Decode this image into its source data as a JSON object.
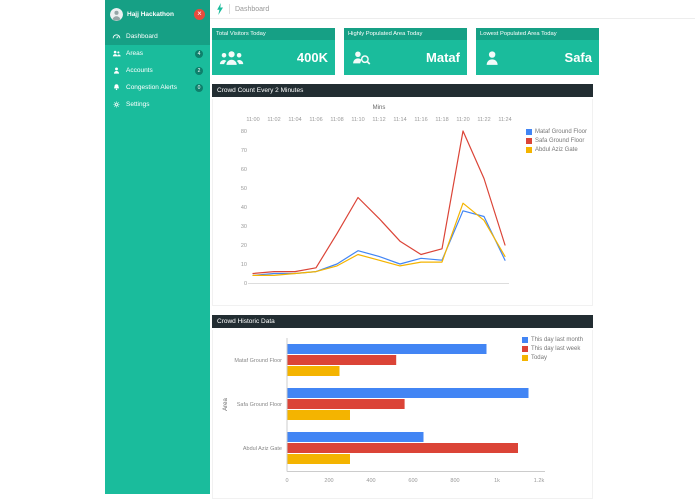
{
  "app": {
    "brand": "Hajj Hackathon",
    "breadcrumb": "Dashboard",
    "theme": {
      "teal": "#1abc9c",
      "teal_dark": "#16a085",
      "panel_header": "#222d32",
      "close_red": "#e74c3c"
    }
  },
  "sidebar": {
    "items": [
      {
        "label": "Dashboard",
        "icon": "gauge-icon",
        "active": true
      },
      {
        "label": "Areas",
        "icon": "people-icon",
        "badge": "4"
      },
      {
        "label": "Accounts",
        "icon": "person-icon",
        "badge": "2"
      },
      {
        "label": "Congestion Alerts",
        "icon": "bell-icon",
        "badge": "0"
      },
      {
        "label": "Settings",
        "icon": "gear-icon"
      }
    ]
  },
  "stat_boxes": [
    {
      "title": "Total Visitors Today",
      "value": "400K",
      "icon": "people-group-icon"
    },
    {
      "title": "Highly Populated Area Today",
      "value": "Mataf",
      "icon": "person-search-icon"
    },
    {
      "title": "Lowest Populated Area Today",
      "value": "Safa",
      "icon": "person-icon"
    }
  ],
  "chart_data": [
    {
      "type": "line",
      "title": "Crowd Count Every 2 Minutes",
      "xlabel": "Mins",
      "x": [
        "11:00",
        "11:02",
        "11:04",
        "11:06",
        "11:08",
        "11:10",
        "11:12",
        "11:14",
        "11:16",
        "11:18",
        "11:20",
        "11:22",
        "11:24"
      ],
      "ylim": [
        0,
        80
      ],
      "yticks": [
        0,
        10,
        20,
        30,
        40,
        50,
        60,
        70,
        80
      ],
      "x_axis_position": "top",
      "legend_position": "right",
      "grid": false,
      "series": [
        {
          "name": "Mataf Ground Floor",
          "color": "#4285f4",
          "values": [
            4,
            5,
            5,
            6,
            10,
            17,
            14,
            10,
            13,
            12,
            38,
            35,
            12
          ]
        },
        {
          "name": "Safa Ground Floor",
          "color": "#db4437",
          "values": [
            5,
            6,
            6,
            8,
            26,
            45,
            34,
            22,
            15,
            18,
            80,
            55,
            20
          ]
        },
        {
          "name": "Abdul Aziz Gate",
          "color": "#f4b400",
          "values": [
            4,
            4,
            5,
            6,
            9,
            15,
            12,
            9,
            11,
            11,
            42,
            33,
            14
          ]
        }
      ]
    },
    {
      "type": "bar",
      "orientation": "horizontal",
      "title": "Crowd Historic Data",
      "ylabel": "Area",
      "categories": [
        "Mataf Ground Floor",
        "Safa Ground Floor",
        "Abdul Aziz Gate"
      ],
      "xlim": [
        0,
        1200
      ],
      "xticks": [
        {
          "value": 0,
          "label": "0"
        },
        {
          "value": 200,
          "label": "200"
        },
        {
          "value": 400,
          "label": "400"
        },
        {
          "value": 600,
          "label": "600"
        },
        {
          "value": 800,
          "label": "800"
        },
        {
          "value": 1000,
          "label": "1k"
        },
        {
          "value": 1200,
          "label": "1.2k"
        }
      ],
      "legend_position": "top-right",
      "series": [
        {
          "name": "This day last month",
          "color": "#4285f4",
          "values": [
            950,
            1150,
            650
          ]
        },
        {
          "name": "This day last week",
          "color": "#db4437",
          "values": [
            520,
            560,
            1100
          ]
        },
        {
          "name": "Today",
          "color": "#f4b400",
          "values": [
            250,
            300,
            300
          ]
        }
      ]
    }
  ]
}
